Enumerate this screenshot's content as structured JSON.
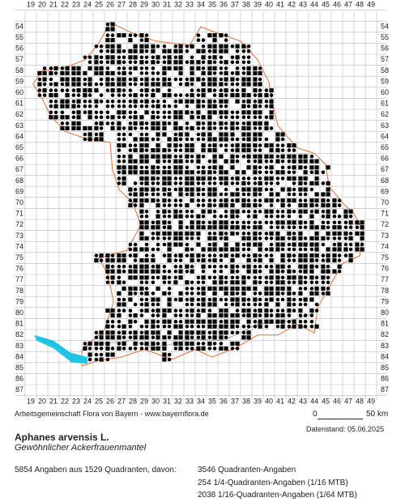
{
  "map": {
    "columns": [
      19,
      20,
      21,
      22,
      23,
      24,
      25,
      26,
      27,
      28,
      29,
      30,
      31,
      32,
      33,
      34,
      35,
      36,
      37,
      38,
      39,
      40,
      41,
      42,
      43,
      44,
      45,
      46,
      47,
      48,
      49
    ],
    "rows": [
      54,
      55,
      56,
      57,
      58,
      59,
      60,
      61,
      62,
      63,
      64,
      65,
      66,
      67,
      68,
      69,
      70,
      71,
      72,
      73,
      74,
      75,
      76,
      77,
      78,
      79,
      80,
      81,
      82,
      83,
      84,
      85,
      86,
      87
    ],
    "scale_start": "0",
    "scale_end": "50 km",
    "credit": "Arbeitsgemeinschaft Flora von Bayern - www.bayernflora.de",
    "date": "Datenstand: 05.06.2025",
    "species": "Aphanes arvensis L.",
    "common_name": "Gewöhnlicher Ackerfrauenmantel",
    "summary": "5854 Angaben aus 1529 Quadranten, davon:",
    "breakdown": [
      "3546 Quadranten-Angaben",
      "254 1/4-Quadranten-Angaben (1/16 MTB)",
      "2038 1/16-Quadranten-Angaben (1/64 MTB)"
    ]
  }
}
